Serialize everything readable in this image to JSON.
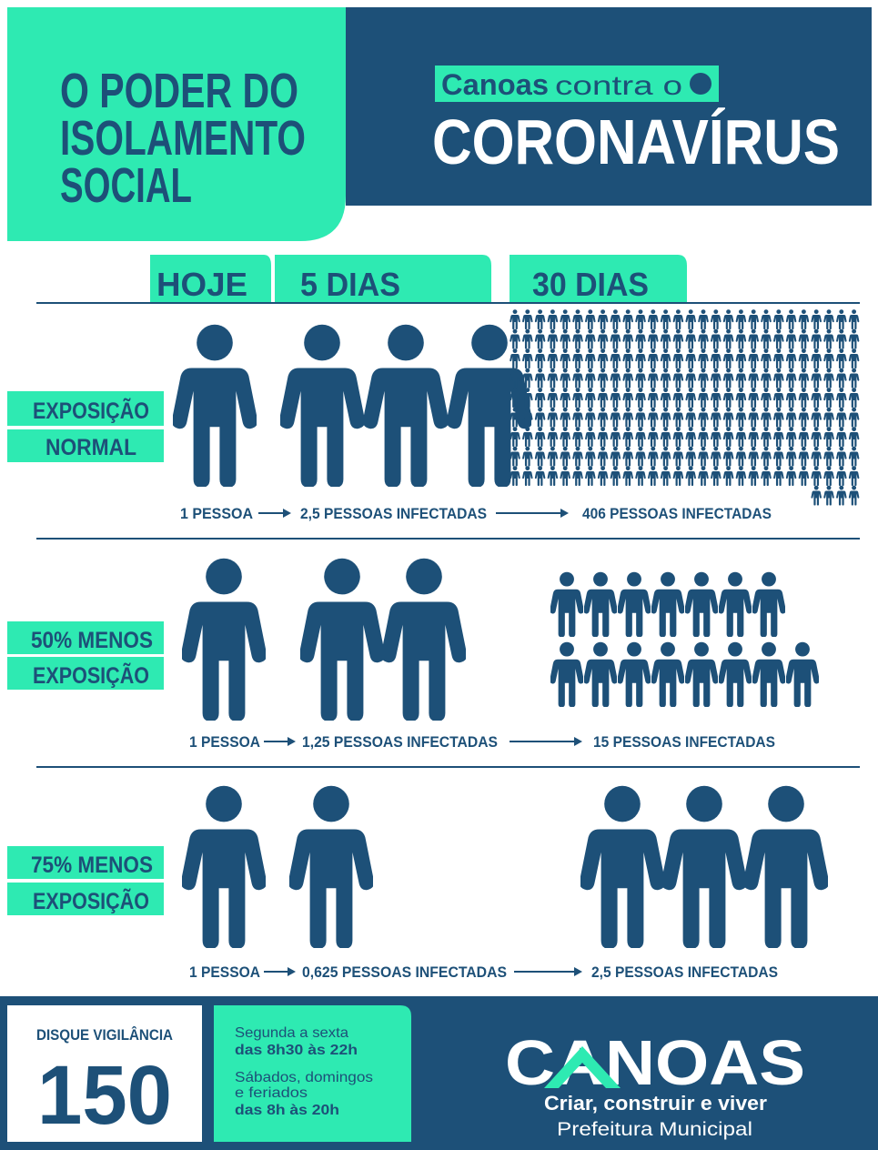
{
  "header": {
    "title_lines": [
      "O PODER DO",
      "ISOLAMENTO",
      "SOCIAL"
    ],
    "campaign": {
      "prefix": "Canoas",
      "middle": "contra o",
      "main": "CORONAVÍRUS"
    }
  },
  "columns": [
    "HOJE",
    "5 DIAS",
    "30 DIAS"
  ],
  "rows": [
    {
      "label_lines": [
        "EXPOSIÇÃO",
        "NORMAL"
      ],
      "captions": [
        "1 PESSOA",
        "2,5 PESSOAS INFECTADAS",
        "406 PESSOAS INFECTADAS"
      ]
    },
    {
      "label_lines": [
        "50% MENOS",
        "EXPOSIÇÃO"
      ],
      "captions": [
        "1 PESSOA",
        "1,25 PESSOAS INFECTADAS",
        "15 PESSOAS INFECTADAS"
      ]
    },
    {
      "label_lines": [
        "75% MENOS",
        "EXPOSIÇÃO"
      ],
      "captions": [
        "1 PESSOA",
        "0,625 PESSOAS INFECTADAS",
        "2,5 PESSOAS INFECTADAS"
      ]
    }
  ],
  "footer": {
    "hotline_label": "DISQUE VIGILÂNCIA",
    "hotline_number": "150",
    "hours": [
      "Segunda a sexta",
      "das 8h30 às 22h",
      "Sábados, domingos",
      "e feriados",
      "das 8h às 20h"
    ],
    "brand": "CANOAS",
    "slogan": "Criar, construir e viver",
    "subtitle": "Prefeitura Municipal"
  }
}
